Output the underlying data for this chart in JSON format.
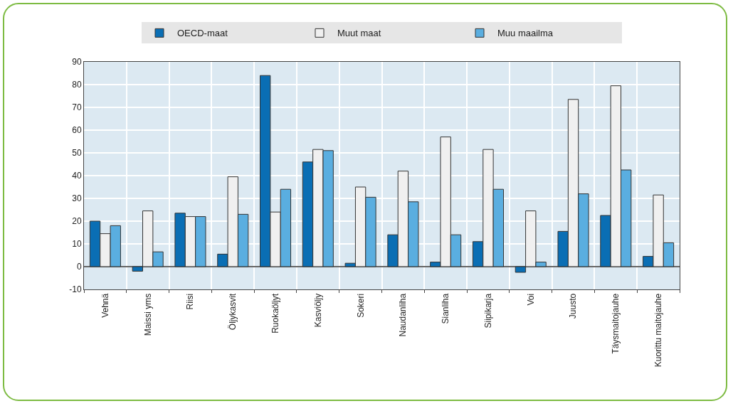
{
  "chart_data": {
    "type": "bar",
    "categories": [
      "Vehnä",
      "Maissi yms",
      "Riisi",
      "Öljykasvit",
      "Ruokaöljyt",
      "Kasviöljy",
      "Sokeri",
      "Naudanliha",
      "Sianliha",
      "Siipikarja",
      "Voi",
      "Juusto",
      "Täysmaitojauhe",
      "Kuorittu maitojauhe"
    ],
    "series": [
      {
        "name": "OECD-maat",
        "color": "#0a6eb4",
        "values": [
          20,
          -2,
          23.5,
          5.5,
          84,
          46,
          1.5,
          14,
          2,
          11,
          -2.5,
          15.5,
          22.5,
          4.5
        ]
      },
      {
        "name": "Muut maat",
        "color": "#f0f0f0",
        "values": [
          14.5,
          24.5,
          22,
          39.5,
          24,
          51.5,
          35,
          42,
          57,
          51.5,
          24.5,
          73.5,
          79.5,
          31.5
        ]
      },
      {
        "name": "Muu maailma",
        "color": "#5aaee0",
        "values": [
          18,
          6.5,
          22,
          23,
          34,
          51,
          30.5,
          28.5,
          14,
          34,
          2,
          32,
          42.5,
          10.5
        ]
      }
    ],
    "ylim": [
      -10,
      90
    ],
    "yticks": [
      -10,
      0,
      10,
      20,
      30,
      40,
      50,
      60,
      70,
      80,
      90
    ],
    "grid": true,
    "legend": "top"
  }
}
